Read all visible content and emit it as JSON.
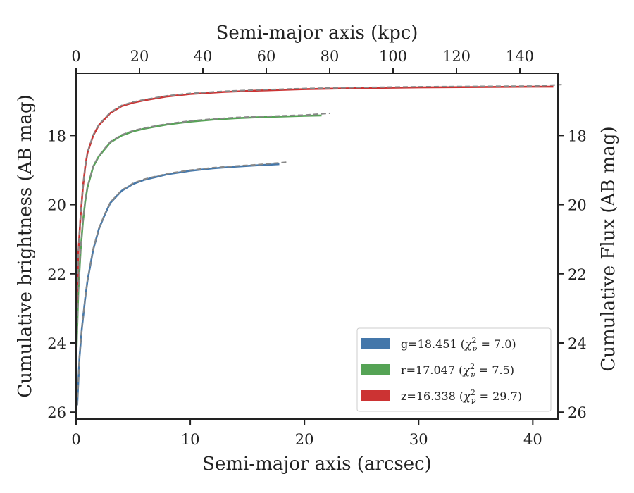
{
  "chart_data": {
    "type": "line",
    "xlabel": "Semi-major axis (arcsec)",
    "xlabel_top": "Semi-major axis (kpc)",
    "ylabel": "Cumulative brightness (AB mag)",
    "ylabel_right": "Cumulative Flux (AB mag)",
    "xlim": [
      0,
      42.2
    ],
    "xlim_top": [
      0,
      152
    ],
    "ylim": [
      26.2,
      16.2
    ],
    "y_inverted": true,
    "x_ticks": [
      0,
      10,
      20,
      30,
      40
    ],
    "x_top_ticks": [
      0,
      20,
      40,
      60,
      80,
      100,
      120,
      140
    ],
    "y_ticks": [
      18,
      20,
      22,
      24,
      26
    ],
    "grid": false,
    "legend_position": "lower-right",
    "series": [
      {
        "name": "g=18.451",
        "chi2": "7.0",
        "color": "#4477aa",
        "x": [
          0.1,
          0.3,
          0.5,
          0.8,
          1.0,
          1.5,
          2.0,
          2.5,
          3.0,
          4.0,
          5.0,
          6.0,
          7.0,
          8.0,
          10.0,
          12.0,
          14.0,
          16.0,
          17.8
        ],
        "y": [
          25.8,
          24.4,
          23.6,
          22.7,
          22.2,
          21.3,
          20.7,
          20.3,
          19.95,
          19.6,
          19.4,
          19.28,
          19.2,
          19.12,
          19.02,
          18.95,
          18.9,
          18.86,
          18.83
        ]
      },
      {
        "name": "r=17.047",
        "chi2": "7.5",
        "color": "#55a355",
        "x": [
          0.05,
          0.2,
          0.4,
          0.6,
          0.8,
          1.0,
          1.5,
          2.0,
          3.0,
          4.0,
          5.0,
          6.0,
          8.0,
          10.0,
          12.0,
          14.0,
          16.0,
          18.0,
          20.0,
          21.5
        ],
        "y": [
          24.1,
          22.5,
          21.3,
          20.5,
          19.9,
          19.5,
          18.9,
          18.6,
          18.2,
          18.0,
          17.88,
          17.8,
          17.68,
          17.6,
          17.54,
          17.5,
          17.47,
          17.45,
          17.43,
          17.42
        ]
      },
      {
        "name": "z=16.338",
        "chi2": "29.7",
        "color": "#cc3333",
        "x": [
          0.05,
          0.2,
          0.4,
          0.6,
          0.8,
          1.0,
          1.5,
          2.0,
          3.0,
          4.0,
          5.0,
          6.0,
          8.0,
          10.0,
          13.0,
          16.0,
          20.0,
          25.0,
          30.0,
          35.0,
          40.0,
          41.8
        ],
        "y": [
          22.9,
          21.4,
          20.3,
          19.5,
          18.9,
          18.5,
          18.0,
          17.7,
          17.35,
          17.15,
          17.05,
          16.98,
          16.87,
          16.8,
          16.74,
          16.7,
          16.66,
          16.63,
          16.61,
          16.6,
          16.59,
          16.59
        ]
      }
    ]
  }
}
